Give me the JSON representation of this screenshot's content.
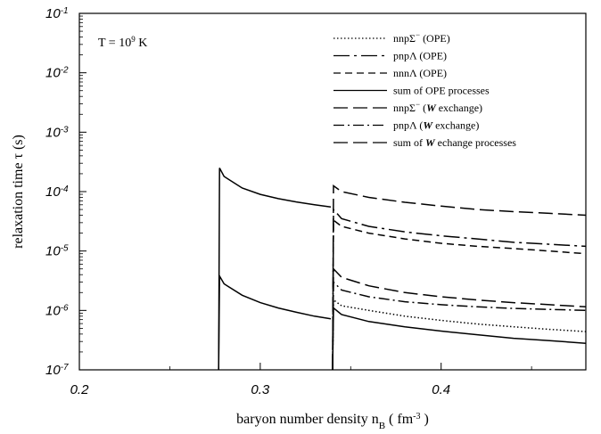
{
  "chart_data": {
    "type": "line",
    "xlabel": "baryon number density n",
    "xlabel_sub": "B",
    "xlabel_units_open": " ( fm",
    "xlabel_units_exp": "-3",
    "xlabel_units_close": " )",
    "ylabel": "relaxation time τ (s)",
    "annotation": {
      "main": "T = 10",
      "exp": "9",
      "unit": " K"
    },
    "x_range": [
      0.2,
      0.48
    ],
    "y_range_log10": [
      -7,
      -1
    ],
    "y_scale": "log",
    "grid": false,
    "legend_position": "top-right",
    "x_ticks": [
      {
        "value": 0.2,
        "label": "0.2"
      },
      {
        "value": 0.3,
        "label": "0.3"
      },
      {
        "value": 0.4,
        "label": "0.4"
      }
    ],
    "y_ticks": [
      {
        "exp": -7,
        "base": "10",
        "sup": "-7"
      },
      {
        "exp": -6,
        "base": "10",
        "sup": "-6"
      },
      {
        "exp": -5,
        "base": "10",
        "sup": "-5"
      },
      {
        "exp": -4,
        "base": "10",
        "sup": "-4"
      },
      {
        "exp": -3,
        "base": "10",
        "sup": "-3"
      },
      {
        "exp": -2,
        "base": "10",
        "sup": "-2"
      },
      {
        "exp": -1,
        "base": "10",
        "sup": "-1"
      }
    ],
    "series": [
      {
        "key": "nnpSigma_ope",
        "legend": [
          {
            "t": "nnpΣ"
          },
          {
            "t": "−",
            "sup": true
          },
          {
            "t": " (OPE)"
          }
        ],
        "dash": "dotted",
        "segments": [
          {
            "x": [
              0.34,
              0.3405,
              0.345,
              0.36,
              0.38,
              0.4,
              0.42,
              0.44,
              0.46,
              0.48
            ],
            "y": [
              1e-07,
              1.5e-06,
              1.2e-06,
              1e-06,
              8e-07,
              6.8e-07,
              5.9e-07,
              5.3e-07,
              4.8e-07,
              4.4e-07
            ]
          }
        ]
      },
      {
        "key": "pnpLambda_ope",
        "legend": [
          {
            "t": "pnpΛ (OPE)"
          }
        ],
        "dash": "dashdot-long",
        "segments": [
          {
            "x": [
              0.34,
              0.3405,
              0.345,
              0.36,
              0.38,
              0.4,
              0.42,
              0.44,
              0.46,
              0.48
            ],
            "y": [
              1e-07,
              5e-05,
              3.5e-05,
              2.6e-05,
              2.1e-05,
              1.8e-05,
              1.6e-05,
              1.4e-05,
              1.3e-05,
              1.2e-05
            ]
          }
        ]
      },
      {
        "key": "nnnLambda_ope",
        "legend": [
          {
            "t": "nnnΛ (OPE)"
          }
        ],
        "dash": "dashed",
        "segments": [
          {
            "x": [
              0.34,
              0.3405,
              0.345,
              0.36,
              0.38,
              0.4,
              0.42,
              0.44,
              0.46,
              0.48
            ],
            "y": [
              1e-07,
              3.3e-05,
              2.6e-05,
              2e-05,
              1.6e-05,
              1.35e-05,
              1.2e-05,
              1.1e-05,
              1e-05,
              9e-06
            ]
          }
        ]
      },
      {
        "key": "sum_ope",
        "legend": [
          {
            "t": "sum of OPE processes"
          }
        ],
        "dash": "solid",
        "segments": [
          {
            "x": [
              0.277,
              0.2775,
              0.28,
              0.29,
              0.3,
              0.31,
              0.32,
              0.33,
              0.339
            ],
            "y": [
              1e-07,
              0.00025,
              0.00018,
              0.000115,
              9e-05,
              7.6e-05,
              6.7e-05,
              6e-05,
              5.5e-05
            ]
          },
          {
            "x": [
              0.277,
              0.2775,
              0.28,
              0.29,
              0.3,
              0.31,
              0.32,
              0.33,
              0.339
            ],
            "y": [
              1e-07,
              3.8e-06,
              2.8e-06,
              1.8e-06,
              1.35e-06,
              1.1e-06,
              9.3e-07,
              8e-07,
              7.2e-07
            ]
          },
          {
            "x": [
              0.34,
              0.3405,
              0.345,
              0.36,
              0.38,
              0.4,
              0.42,
              0.44,
              0.46,
              0.48
            ],
            "y": [
              1e-07,
              1.1e-06,
              8.5e-07,
              6.5e-07,
              5.3e-07,
              4.5e-07,
              3.9e-07,
              3.4e-07,
              3.1e-07,
              2.8e-07
            ]
          }
        ]
      },
      {
        "key": "nnpSigma_w",
        "legend": [
          {
            "t": "nnpΣ"
          },
          {
            "t": "−",
            "sup": true
          },
          {
            "t": " ("
          },
          {
            "t": "W",
            "italic": true
          },
          {
            "t": " exchange)"
          }
        ],
        "dash": "longdash",
        "segments": [
          {
            "x": [
              0.34,
              0.3405,
              0.345,
              0.36,
              0.38,
              0.4,
              0.42,
              0.44,
              0.46,
              0.48
            ],
            "y": [
              1e-07,
              5e-06,
              3.6e-06,
              2.6e-06,
              2e-06,
              1.7e-06,
              1.5e-06,
              1.35e-06,
              1.25e-06,
              1.15e-06
            ]
          }
        ]
      },
      {
        "key": "pnpLambda_w",
        "legend": [
          {
            "t": "pnpΛ ("
          },
          {
            "t": "W",
            "italic": true
          },
          {
            "t": " exchange)"
          }
        ],
        "dash": "dashdot",
        "segments": [
          {
            "x": [
              0.34,
              0.3405,
              0.345,
              0.36,
              0.38,
              0.4,
              0.42,
              0.44,
              0.46,
              0.48
            ],
            "y": [
              1e-07,
              3e-06,
              2.2e-06,
              1.7e-06,
              1.4e-06,
              1.25e-06,
              1.15e-06,
              1.08e-06,
              1.04e-06,
              1e-06
            ]
          }
        ]
      },
      {
        "key": "sum_w",
        "legend": [
          {
            "t": "sum of "
          },
          {
            "t": "W",
            "italic": true
          },
          {
            "t": " echange processes"
          }
        ],
        "dash": "longdash",
        "segments": [
          {
            "x": [
              0.34,
              0.3405,
              0.345,
              0.36,
              0.38,
              0.4,
              0.42,
              0.44,
              0.46,
              0.48
            ],
            "y": [
              1e-07,
              0.000125,
              0.0001,
              8e-05,
              6.6e-05,
              5.7e-05,
              5e-05,
              4.6e-05,
              4.3e-05,
              4e-05
            ]
          }
        ]
      }
    ]
  }
}
